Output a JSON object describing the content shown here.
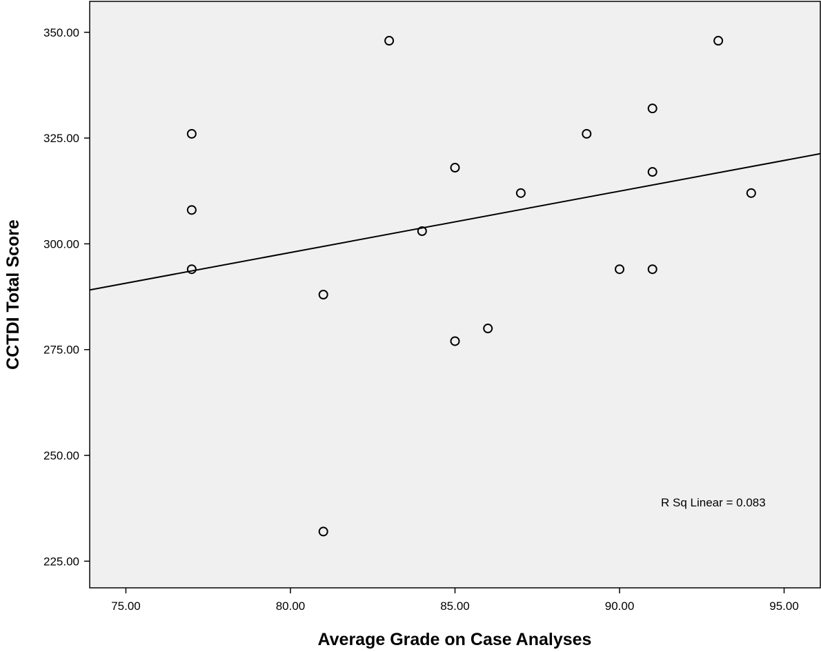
{
  "chart_data": {
    "type": "scatter",
    "title": "",
    "xlabel": "Average Grade on Case Analyses",
    "ylabel": "CCTDI Total Score",
    "xlim": [
      73.9,
      96.1
    ],
    "ylim": [
      218.7,
      357.3
    ],
    "x_ticks": [
      75,
      80,
      85,
      90,
      95
    ],
    "x_tick_labels": [
      "75.00",
      "80.00",
      "85.00",
      "90.00",
      "95.00"
    ],
    "y_ticks": [
      225,
      250,
      275,
      300,
      325,
      350
    ],
    "y_tick_labels": [
      "225.00",
      "250.00",
      "275.00",
      "300.00",
      "325.00",
      "350.00"
    ],
    "grid": false,
    "plot_background": "#f0f0f0",
    "marker": "open-circle",
    "points": [
      {
        "x": 77,
        "y": 326
      },
      {
        "x": 77,
        "y": 308
      },
      {
        "x": 77,
        "y": 294
      },
      {
        "x": 81,
        "y": 288
      },
      {
        "x": 81,
        "y": 232
      },
      {
        "x": 83,
        "y": 348
      },
      {
        "x": 84,
        "y": 303
      },
      {
        "x": 85,
        "y": 318
      },
      {
        "x": 85,
        "y": 277
      },
      {
        "x": 86,
        "y": 280
      },
      {
        "x": 87,
        "y": 312
      },
      {
        "x": 89,
        "y": 326
      },
      {
        "x": 90,
        "y": 294
      },
      {
        "x": 91,
        "y": 332
      },
      {
        "x": 91,
        "y": 317
      },
      {
        "x": 91,
        "y": 294
      },
      {
        "x": 93,
        "y": 348
      },
      {
        "x": 94,
        "y": 312
      }
    ],
    "fit_line": {
      "type": "linear",
      "points": [
        {
          "x": 73.9,
          "y": 289.1
        },
        {
          "x": 96.1,
          "y": 321.3
        }
      ]
    },
    "annotation": "R Sq Linear = 0.083"
  }
}
